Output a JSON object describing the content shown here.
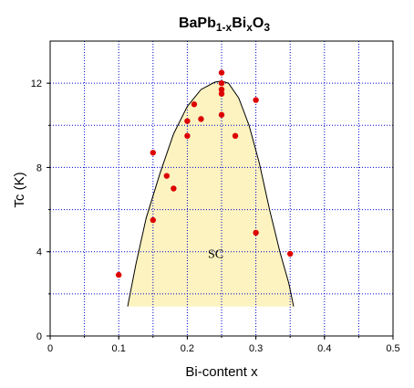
{
  "chart_data": {
    "type": "scatter",
    "title_parts": {
      "base": "BaPb",
      "sub1": "1-x",
      "mid": "Bi",
      "sub2": "x",
      "end": "O",
      "sub3": "3"
    },
    "xlabel": "Bi-content  x",
    "ylabel": "Tc (K)",
    "xlim": [
      0,
      0.5
    ],
    "ylim": [
      0,
      14
    ],
    "xticks": [
      0,
      0.1,
      0.2,
      0.3,
      0.4,
      0.5
    ],
    "xtick_labels": [
      "0",
      "0.1",
      "0.2",
      "0.3",
      "0.4",
      "0.5"
    ],
    "yticks": [
      0,
      4,
      8,
      12
    ],
    "ytick_labels": [
      "0",
      "4",
      "8",
      "12"
    ],
    "grid_x": [
      0.05,
      0.1,
      0.15,
      0.2,
      0.25,
      0.3,
      0.35,
      0.4,
      0.45
    ],
    "grid_y": [
      2,
      4,
      6,
      8,
      10,
      12
    ],
    "grid": true,
    "grid_color": "#0000cc",
    "point_color": "#dd0000",
    "region_fill": "#fdf3c0",
    "region_annotation": "SC",
    "annotation_position": [
      0.23,
      3.7
    ],
    "points": [
      {
        "x": 0.1,
        "y": 2.9
      },
      {
        "x": 0.15,
        "y": 8.7
      },
      {
        "x": 0.15,
        "y": 5.5
      },
      {
        "x": 0.17,
        "y": 7.6
      },
      {
        "x": 0.18,
        "y": 7.0
      },
      {
        "x": 0.2,
        "y": 10.2
      },
      {
        "x": 0.2,
        "y": 9.5
      },
      {
        "x": 0.21,
        "y": 11.0
      },
      {
        "x": 0.22,
        "y": 10.3
      },
      {
        "x": 0.25,
        "y": 12.5
      },
      {
        "x": 0.25,
        "y": 12.0
      },
      {
        "x": 0.25,
        "y": 11.7
      },
      {
        "x": 0.25,
        "y": 11.5
      },
      {
        "x": 0.25,
        "y": 10.5
      },
      {
        "x": 0.27,
        "y": 9.5
      },
      {
        "x": 0.3,
        "y": 11.2
      },
      {
        "x": 0.3,
        "y": 4.9
      },
      {
        "x": 0.35,
        "y": 3.9
      }
    ],
    "dome_curve": [
      [
        0.113,
        1.4
      ],
      [
        0.125,
        3.4
      ],
      [
        0.14,
        5.6
      ],
      [
        0.16,
        7.7
      ],
      [
        0.18,
        9.6
      ],
      [
        0.2,
        10.9
      ],
      [
        0.22,
        11.7
      ],
      [
        0.24,
        12.05
      ],
      [
        0.25,
        12.1
      ],
      [
        0.26,
        12.0
      ],
      [
        0.275,
        11.3
      ],
      [
        0.29,
        10.0
      ],
      [
        0.305,
        8.2
      ],
      [
        0.32,
        6.0
      ],
      [
        0.335,
        4.0
      ],
      [
        0.348,
        2.5
      ],
      [
        0.355,
        1.4
      ]
    ]
  }
}
